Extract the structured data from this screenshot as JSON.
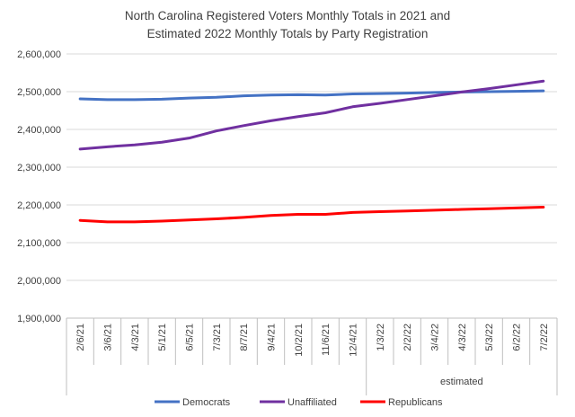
{
  "chart_data": {
    "type": "line",
    "title": [
      "North Carolina Registered Voters Monthly Totals in 2021 and",
      "Estimated 2022 Monthly Totals by Party Registration"
    ],
    "categories": [
      "2/6/21",
      "3/6/21",
      "4/3/21",
      "5/1/21",
      "6/5/21",
      "7/3/21",
      "8/7/21",
      "9/4/21",
      "10/2/21",
      "11/6/21",
      "12/4/21",
      "1/3/22",
      "2/2/22",
      "3/4/22",
      "4/3/22",
      "5/3/22",
      "6/2/22",
      "7/2/22"
    ],
    "ylim": [
      1900000,
      2600000
    ],
    "yticks": [
      1900000,
      2000000,
      2100000,
      2200000,
      2300000,
      2400000,
      2500000,
      2600000
    ],
    "ytick_labels": [
      "1,900,000",
      "2,000,000",
      "2,100,000",
      "2,200,000",
      "2,300,000",
      "2,400,000",
      "2,500,000",
      "2,600,000"
    ],
    "group_label": "estimated",
    "group_start_index": 11,
    "series": [
      {
        "name": "Democrats",
        "color": "#4472c4",
        "values": [
          2481000,
          2479000,
          2479000,
          2480000,
          2483000,
          2485000,
          2489000,
          2491000,
          2492000,
          2491000,
          2494000,
          2495000,
          2496000,
          2498000,
          2499000,
          2500000,
          2501000,
          2502000
        ]
      },
      {
        "name": "Unaffiliated",
        "color": "#7030a0",
        "values": [
          2348000,
          2354000,
          2359000,
          2366000,
          2377000,
          2396000,
          2410000,
          2423000,
          2434000,
          2444000,
          2460000,
          2469000,
          2479000,
          2489000,
          2499000,
          2508000,
          2518000,
          2528000
        ]
      },
      {
        "name": "Republicans",
        "color": "#ff0000",
        "values": [
          2159000,
          2155000,
          2155000,
          2157000,
          2160000,
          2163000,
          2167000,
          2172000,
          2175000,
          2175000,
          2180000,
          2182000,
          2184000,
          2186000,
          2188000,
          2190000,
          2192000,
          2194000
        ]
      }
    ],
    "legend_position": "bottom"
  }
}
